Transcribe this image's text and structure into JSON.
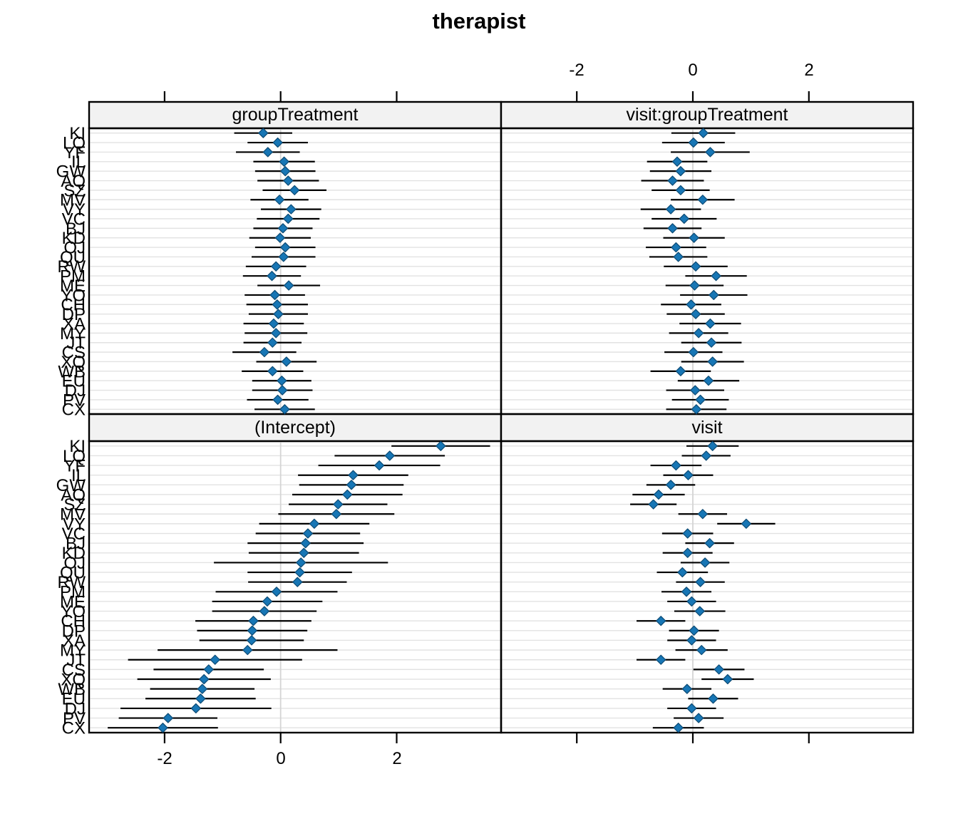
{
  "chart_data": {
    "type": "dotplot",
    "title": "therapist",
    "levels": [
      "KI",
      "LQ",
      "YF",
      "IL",
      "GW",
      "AQ",
      "SZ",
      "MV",
      "VY",
      "VC",
      "BJ",
      "KD",
      "OJ",
      "QU",
      "RW",
      "PM",
      "ME",
      "YO",
      "CH",
      "DP",
      "XA",
      "MY",
      "JT",
      "CS",
      "XQ",
      "WB",
      "EU",
      "DJ",
      "PV",
      "CX"
    ],
    "x_ticks": [
      "-2",
      "0",
      "2"
    ],
    "x_tick_values": [
      -2,
      0,
      2
    ],
    "x_range_per_panel": [
      -3.3,
      3.8
    ],
    "grid": true,
    "legend_position": "none",
    "panels": [
      {
        "label": "groupTreatment",
        "position": "top-left",
        "values": [
          -0.3,
          -0.05,
          -0.22,
          0.06,
          0.08,
          0.13,
          0.24,
          -0.02,
          0.18,
          0.13,
          0.04,
          -0.01,
          0.08,
          0.05,
          -0.08,
          -0.15,
          0.14,
          -0.1,
          -0.06,
          -0.04,
          -0.12,
          -0.08,
          -0.14,
          -0.28,
          0.1,
          -0.14,
          0.02,
          0.03,
          -0.05,
          0.07
        ],
        "ci_half_width": [
          0.5,
          0.52,
          0.55,
          0.53,
          0.52,
          0.53,
          0.55,
          0.5,
          0.52,
          0.54,
          0.51,
          0.53,
          0.52,
          0.55,
          0.52,
          0.5,
          0.54,
          0.52,
          0.53,
          0.51,
          0.52,
          0.54,
          0.5,
          0.55,
          0.52,
          0.53,
          0.51,
          0.52,
          0.53,
          0.52
        ]
      },
      {
        "label": "visit:groupTreatment",
        "position": "top-right",
        "values": [
          0.18,
          0.01,
          0.3,
          -0.27,
          -0.21,
          -0.35,
          -0.21,
          0.17,
          -0.38,
          -0.15,
          -0.35,
          0.02,
          -0.29,
          -0.25,
          0.05,
          0.4,
          0.03,
          0.36,
          -0.03,
          0.05,
          0.3,
          0.1,
          0.32,
          0.01,
          0.34,
          -0.21,
          0.27,
          0.04,
          0.13,
          0.06
        ],
        "ci_half_width": [
          0.55,
          0.54,
          0.68,
          0.52,
          0.53,
          0.54,
          0.5,
          0.55,
          0.52,
          0.56,
          0.5,
          0.53,
          0.52,
          0.5,
          0.55,
          0.53,
          0.5,
          0.58,
          0.52,
          0.5,
          0.53,
          0.51,
          0.52,
          0.5,
          0.54,
          0.52,
          0.53,
          0.5,
          0.49,
          0.52
        ]
      },
      {
        "label": "(Intercept)",
        "position": "bottom-left",
        "values": [
          2.76,
          1.88,
          1.7,
          1.25,
          1.22,
          1.15,
          0.99,
          0.96,
          0.58,
          0.47,
          0.43,
          0.4,
          0.35,
          0.33,
          0.29,
          -0.07,
          -0.23,
          -0.28,
          -0.47,
          -0.49,
          -0.5,
          -0.57,
          -1.13,
          -1.24,
          -1.32,
          -1.35,
          -1.38,
          -1.46,
          -1.94,
          -2.03
        ],
        "ci_half_width": [
          0.85,
          0.95,
          1.05,
          0.95,
          0.9,
          0.95,
          0.85,
          1.0,
          0.95,
          0.9,
          1.0,
          0.95,
          1.5,
          0.9,
          0.85,
          1.05,
          0.95,
          0.9,
          1.0,
          0.95,
          0.9,
          1.55,
          1.5,
          0.95,
          1.15,
          0.9,
          0.95,
          1.3,
          0.85,
          0.95
        ]
      },
      {
        "label": "visit",
        "position": "bottom-right",
        "values": [
          0.34,
          0.23,
          -0.29,
          -0.08,
          -0.38,
          -0.59,
          -0.68,
          0.17,
          0.92,
          -0.09,
          0.29,
          -0.09,
          0.21,
          -0.18,
          0.13,
          -0.11,
          -0.02,
          0.12,
          -0.55,
          0.02,
          -0.02,
          0.15,
          -0.55,
          0.45,
          0.6,
          -0.1,
          0.35,
          -0.02,
          0.1,
          -0.25
        ],
        "ci_half_width": [
          0.45,
          0.42,
          0.44,
          0.43,
          0.42,
          0.45,
          0.4,
          0.42,
          0.5,
          0.44,
          0.42,
          0.43,
          0.42,
          0.44,
          0.42,
          0.43,
          0.42,
          0.44,
          0.42,
          0.43,
          0.42,
          0.45,
          0.42,
          0.44,
          0.45,
          0.42,
          0.43,
          0.42,
          0.43,
          0.44
        ]
      }
    ],
    "colors": {
      "point_fill": "#1776b5",
      "point_stroke": "#0d4a73",
      "error_bar": "#000000",
      "gridline": "#e2e2e2",
      "zero_line": "#d4d4d4",
      "panel_border": "#000000",
      "header_bg": "#f2f2f2",
      "text": "#000000"
    }
  }
}
